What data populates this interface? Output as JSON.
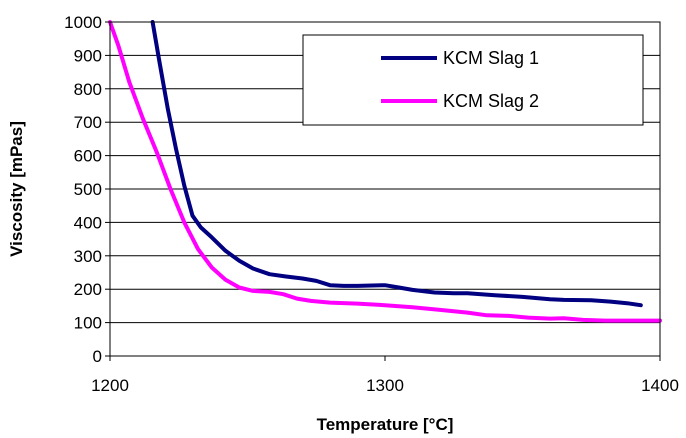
{
  "chart_data": {
    "type": "line",
    "title": "",
    "xlabel": "Temperature [°C]",
    "ylabel": "Viscosity [mPas]",
    "xlim": [
      1200,
      1400
    ],
    "ylim": [
      0,
      1000
    ],
    "x_ticks": [
      1200,
      1300,
      1400
    ],
    "y_ticks": [
      0,
      100,
      200,
      300,
      400,
      500,
      600,
      700,
      800,
      900,
      1000
    ],
    "grid": "horizontal",
    "legend_position": "top-right",
    "series": [
      {
        "name": "KCM Slag 1",
        "color": "#000080",
        "points": [
          [
            1215.5,
            1000
          ],
          [
            1218,
            880
          ],
          [
            1221,
            740
          ],
          [
            1224,
            620
          ],
          [
            1227,
            510
          ],
          [
            1230,
            420
          ],
          [
            1233,
            385
          ],
          [
            1237,
            355
          ],
          [
            1242,
            315
          ],
          [
            1247,
            285
          ],
          [
            1252,
            262
          ],
          [
            1258,
            245
          ],
          [
            1264,
            238
          ],
          [
            1270,
            232
          ],
          [
            1275,
            225
          ],
          [
            1280,
            212
          ],
          [
            1285,
            210
          ],
          [
            1290,
            210
          ],
          [
            1300,
            212
          ],
          [
            1305,
            205
          ],
          [
            1310,
            198
          ],
          [
            1318,
            190
          ],
          [
            1325,
            188
          ],
          [
            1330,
            188
          ],
          [
            1340,
            182
          ],
          [
            1350,
            177
          ],
          [
            1360,
            170
          ],
          [
            1365,
            168
          ],
          [
            1375,
            167
          ],
          [
            1382,
            163
          ],
          [
            1388,
            158
          ],
          [
            1393,
            152
          ]
        ]
      },
      {
        "name": "KCM Slag 2",
        "color": "#FF00FF",
        "points": [
          [
            1200,
            1000
          ],
          [
            1203,
            930
          ],
          [
            1207,
            820
          ],
          [
            1212,
            710
          ],
          [
            1217,
            610
          ],
          [
            1222,
            500
          ],
          [
            1227,
            400
          ],
          [
            1232,
            320
          ],
          [
            1237,
            265
          ],
          [
            1242,
            228
          ],
          [
            1247,
            205
          ],
          [
            1252,
            195
          ],
          [
            1258,
            192
          ],
          [
            1263,
            185
          ],
          [
            1268,
            172
          ],
          [
            1273,
            165
          ],
          [
            1280,
            160
          ],
          [
            1290,
            157
          ],
          [
            1300,
            152
          ],
          [
            1310,
            146
          ],
          [
            1320,
            138
          ],
          [
            1330,
            130
          ],
          [
            1337,
            122
          ],
          [
            1345,
            120
          ],
          [
            1352,
            115
          ],
          [
            1360,
            112
          ],
          [
            1365,
            113
          ],
          [
            1372,
            108
          ],
          [
            1380,
            106
          ],
          [
            1390,
            106
          ],
          [
            1400,
            106
          ]
        ]
      }
    ]
  }
}
